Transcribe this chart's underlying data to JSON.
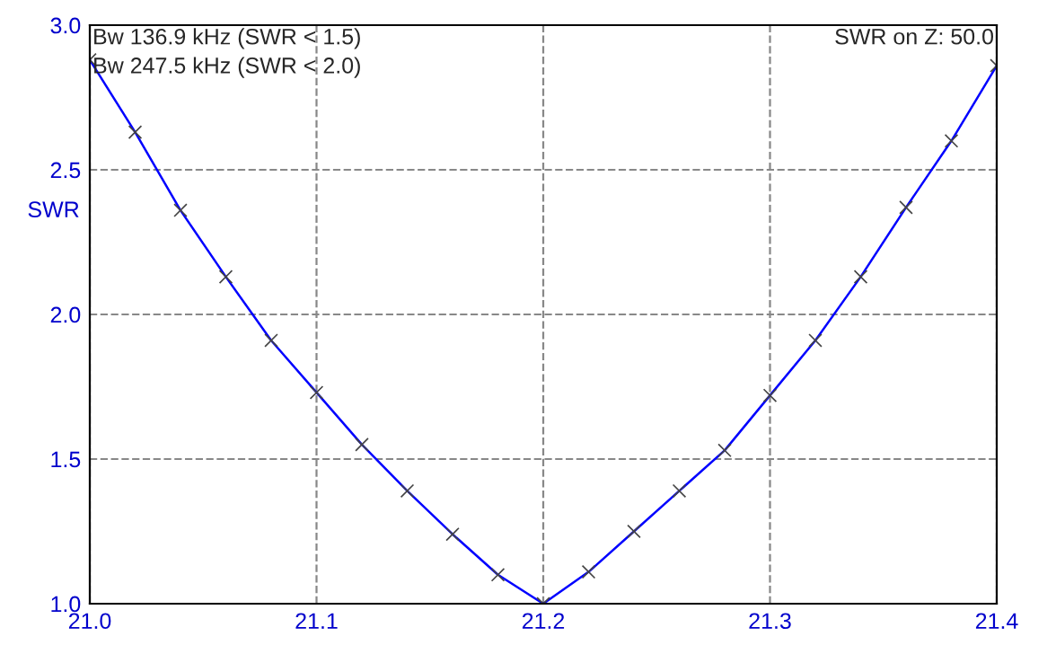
{
  "chart_data": {
    "type": "line",
    "ylabel": "SWR",
    "x": [
      21.0,
      21.02,
      21.04,
      21.06,
      21.08,
      21.1,
      21.12,
      21.14,
      21.16,
      21.18,
      21.2,
      21.22,
      21.24,
      21.26,
      21.28,
      21.3,
      21.32,
      21.34,
      21.36,
      21.38,
      21.4
    ],
    "series": [
      {
        "color": "#0000ff",
        "values": [
          2.88,
          2.63,
          2.36,
          2.13,
          1.91,
          1.73,
          1.55,
          1.39,
          1.24,
          1.1,
          1.0,
          1.11,
          1.25,
          1.39,
          1.53,
          1.72,
          1.91,
          2.13,
          2.37,
          2.6,
          2.86
        ]
      }
    ],
    "xlim": [
      21.0,
      21.4
    ],
    "xticks": [
      {
        "value": 21.0,
        "label": "21.0"
      },
      21.1,
      21.2,
      21.3,
      {
        "value": 21.4,
        "label": "21.4"
      }
    ],
    "ylim": [
      1.0,
      3.0
    ],
    "yticks": [
      {
        "value": 1.0,
        "label": "1.0"
      },
      1.5,
      {
        "value": 2.0,
        "label": "2.0"
      },
      2.5,
      {
        "value": 3.0,
        "label": "3.0"
      }
    ],
    "grid": true,
    "marker": "cross",
    "line_style": "solid",
    "annotations": [
      "Bw 136.9 kHz (SWR < 1.5)",
      "Bw 247.5 kHz (SWR < 2.0)",
      "SWR on Z: 50.0"
    ]
  }
}
